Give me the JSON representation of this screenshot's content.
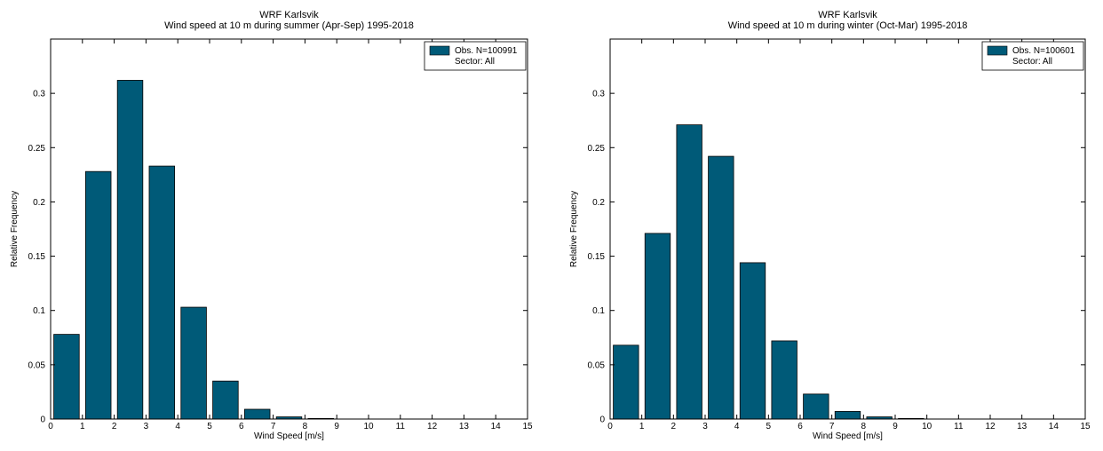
{
  "bar_color": "#005a78",
  "chart_data": [
    {
      "type": "bar",
      "title": "WRF Karlsvik",
      "subtitle": "Wind speed at 10 m during summer (Apr-Sep) 1995-2018",
      "xlabel": "Wind Speed [m/s]",
      "ylabel": "Relative Frequency",
      "xlim": [
        0,
        15
      ],
      "ylim": [
        0,
        0.35
      ],
      "xticks": [
        "0",
        "1",
        "2",
        "3",
        "4",
        "5",
        "6",
        "7",
        "8",
        "9",
        "10",
        "11",
        "12",
        "13",
        "14",
        "15"
      ],
      "yticks": [
        "0",
        "0.05",
        "0.1",
        "0.15",
        "0.2",
        "0.25",
        "0.3"
      ],
      "ytick_values": [
        0,
        0.05,
        0.1,
        0.15,
        0.2,
        0.25,
        0.3
      ],
      "bin_centers": [
        0.5,
        1.5,
        2.5,
        3.5,
        4.5,
        5.5,
        6.5,
        7.5,
        8.5,
        9.5,
        10.5,
        11.5,
        12.5,
        13.5,
        14.5
      ],
      "values": [
        0.078,
        0.228,
        0.312,
        0.233,
        0.103,
        0.035,
        0.009,
        0.002,
        0.0005,
        0.0002,
        0,
        0,
        0,
        0,
        0
      ],
      "legend": {
        "line1": "Obs.  N=100991",
        "line2": "Sector: All",
        "position": "top-right"
      },
      "grid": false
    },
    {
      "type": "bar",
      "title": "WRF Karlsvik",
      "subtitle": "Wind speed at 10 m during winter (Oct-Mar) 1995-2018",
      "xlabel": "Wind Speed [m/s]",
      "ylabel": "Relative Frequency",
      "xlim": [
        0,
        15
      ],
      "ylim": [
        0,
        0.35
      ],
      "xticks": [
        "0",
        "1",
        "2",
        "3",
        "4",
        "5",
        "6",
        "7",
        "8",
        "9",
        "10",
        "11",
        "12",
        "13",
        "14",
        "15"
      ],
      "yticks": [
        "0",
        "0.05",
        "0.1",
        "0.15",
        "0.2",
        "0.25",
        "0.3"
      ],
      "ytick_values": [
        0,
        0.05,
        0.1,
        0.15,
        0.2,
        0.25,
        0.3
      ],
      "bin_centers": [
        0.5,
        1.5,
        2.5,
        3.5,
        4.5,
        5.5,
        6.5,
        7.5,
        8.5,
        9.5,
        10.5,
        11.5,
        12.5,
        13.5,
        14.5
      ],
      "values": [
        0.068,
        0.171,
        0.271,
        0.242,
        0.144,
        0.072,
        0.023,
        0.007,
        0.002,
        0.0005,
        0.0002,
        0,
        0,
        0,
        0
      ],
      "legend": {
        "line1": "Obs.  N=100601",
        "line2": "Sector: All",
        "position": "top-right"
      },
      "grid": false
    }
  ]
}
